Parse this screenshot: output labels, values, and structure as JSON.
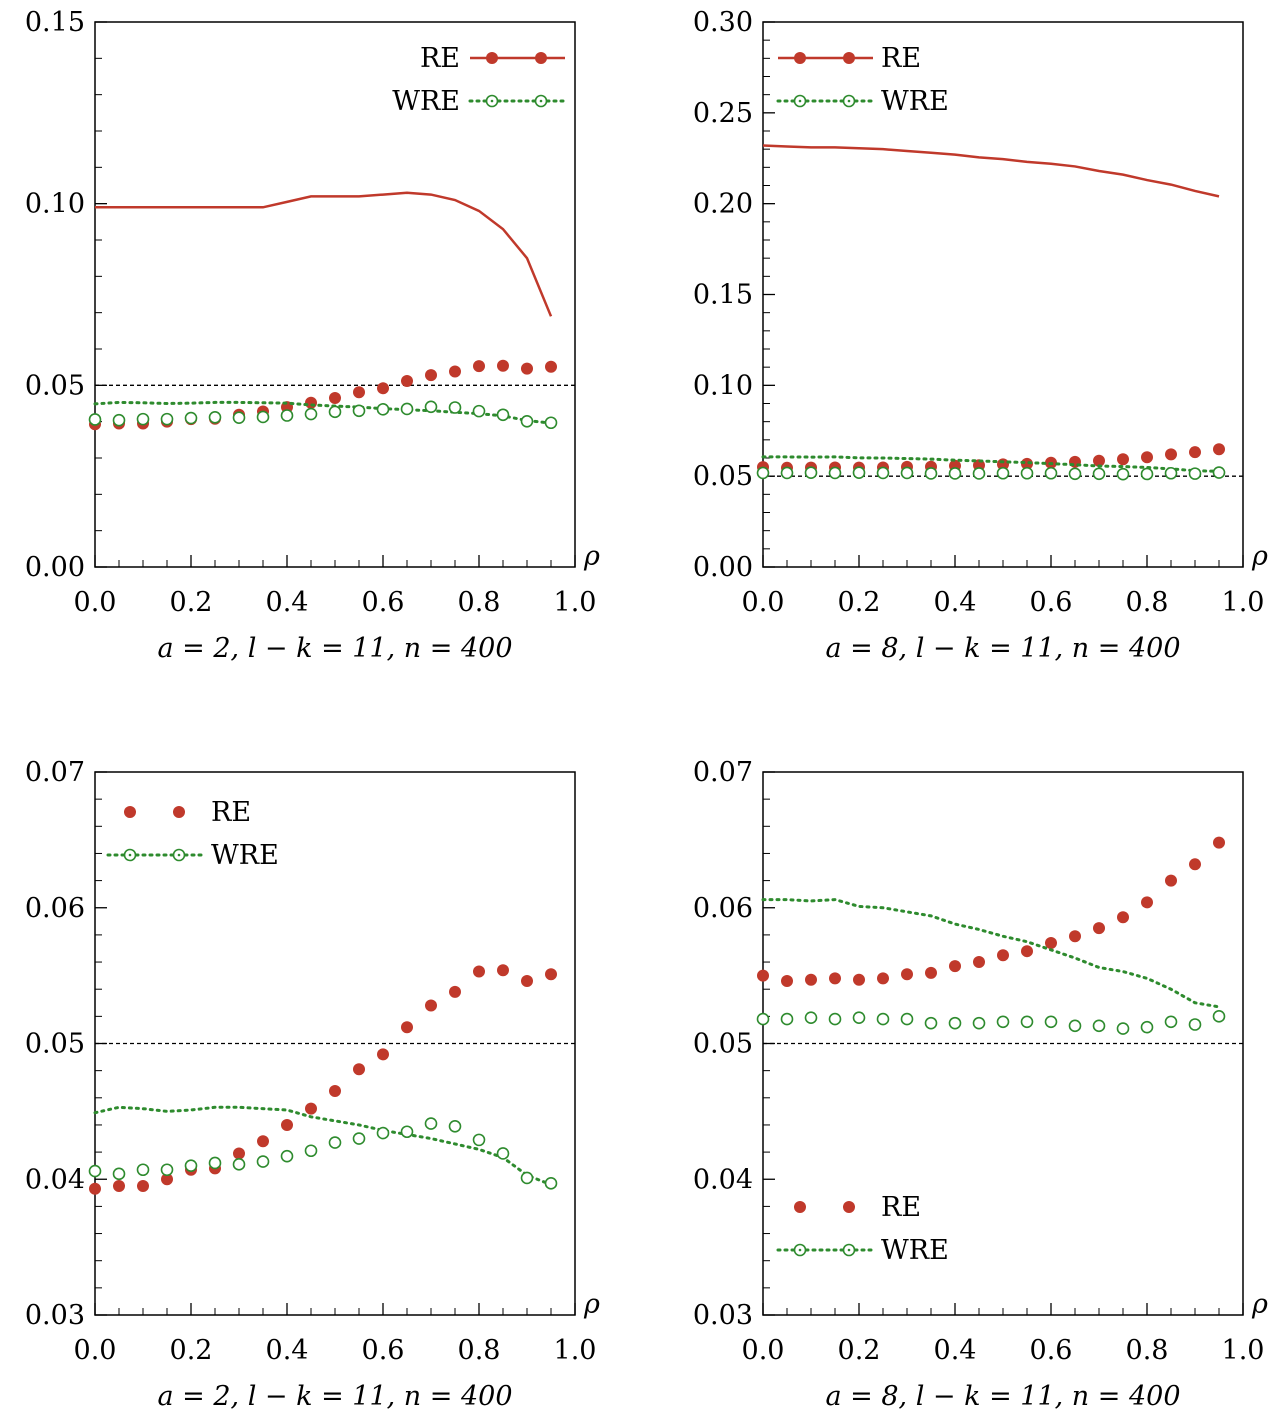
{
  "colors": {
    "re": "#c0392b",
    "wre": "#2e8b2e",
    "ref": "#000000"
  },
  "chart_data": [
    {
      "type": "line",
      "caption": {
        "prefix": "a = 2, l − k = 11, n = 400"
      },
      "xlabel": "ρ",
      "xlim": [
        0.0,
        1.0
      ],
      "ylim": [
        0.0,
        0.15
      ],
      "x_ticks": [
        "0.0",
        "0.2",
        "0.4",
        "0.6",
        "0.8",
        "1.0"
      ],
      "y_ticks": [
        "0.00",
        "0.05",
        "0.10",
        "0.15"
      ],
      "reference_line": 0.05,
      "legend": {
        "placement": "top-right",
        "entries": [
          "RE",
          "WRE"
        ]
      },
      "x": [
        0.0,
        0.05,
        0.1,
        0.15,
        0.2,
        0.25,
        0.3,
        0.35,
        0.4,
        0.45,
        0.5,
        0.55,
        0.6,
        0.65,
        0.7,
        0.75,
        0.8,
        0.85,
        0.9,
        0.95
      ],
      "series": [
        {
          "name": "RE",
          "style": "solid-line",
          "values": [
            0.099,
            0.099,
            0.099,
            0.099,
            0.099,
            0.099,
            0.099,
            0.099,
            0.1005,
            0.102,
            0.102,
            0.102,
            0.1025,
            0.103,
            0.1025,
            0.101,
            0.098,
            0.093,
            0.085,
            0.069
          ]
        },
        {
          "name": "RE",
          "style": "filled-points",
          "values": [
            0.0393,
            0.0395,
            0.0395,
            0.04,
            0.0407,
            0.0408,
            0.0419,
            0.0428,
            0.044,
            0.0452,
            0.0465,
            0.0481,
            0.0492,
            0.0512,
            0.0528,
            0.0538,
            0.0553,
            0.0554,
            0.0546,
            0.0551
          ]
        },
        {
          "name": "WRE",
          "style": "dotted-line",
          "values": [
            0.0449,
            0.0453,
            0.0452,
            0.045,
            0.0451,
            0.0453,
            0.0453,
            0.0452,
            0.0451,
            0.0446,
            0.0443,
            0.044,
            0.0436,
            0.0433,
            0.043,
            0.0426,
            0.0422,
            0.0416,
            0.0403,
            0.0396
          ]
        },
        {
          "name": "WRE",
          "style": "hollow-points",
          "values": [
            0.0406,
            0.0404,
            0.0407,
            0.0407,
            0.041,
            0.0412,
            0.0411,
            0.0413,
            0.0417,
            0.0421,
            0.0427,
            0.043,
            0.0434,
            0.0435,
            0.0441,
            0.0439,
            0.0429,
            0.0419,
            0.0401,
            0.0397
          ]
        }
      ]
    },
    {
      "type": "line",
      "caption": {
        "prefix": "a = 8, l − k = 11, n = 400"
      },
      "xlabel": "ρ",
      "xlim": [
        0.0,
        1.0
      ],
      "ylim": [
        0.0,
        0.3
      ],
      "x_ticks": [
        "0.0",
        "0.2",
        "0.4",
        "0.6",
        "0.8",
        "1.0"
      ],
      "y_ticks": [
        "0.00",
        "0.05",
        "0.10",
        "0.15",
        "0.20",
        "0.25",
        "0.30"
      ],
      "reference_line": 0.05,
      "legend": {
        "placement": "top-left",
        "entries": [
          "RE",
          "WRE"
        ]
      },
      "x": [
        0.0,
        0.05,
        0.1,
        0.15,
        0.2,
        0.25,
        0.3,
        0.35,
        0.4,
        0.45,
        0.5,
        0.55,
        0.6,
        0.65,
        0.7,
        0.75,
        0.8,
        0.85,
        0.9,
        0.95
      ],
      "series": [
        {
          "name": "RE",
          "style": "solid-line",
          "values": [
            0.232,
            0.2315,
            0.231,
            0.231,
            0.2305,
            0.23,
            0.229,
            0.228,
            0.227,
            0.2255,
            0.2245,
            0.223,
            0.222,
            0.2205,
            0.218,
            0.216,
            0.213,
            0.2105,
            0.207,
            0.204
          ]
        },
        {
          "name": "RE",
          "style": "filled-points",
          "values": [
            0.055,
            0.0546,
            0.0547,
            0.0548,
            0.0547,
            0.0548,
            0.0551,
            0.0552,
            0.0557,
            0.056,
            0.0565,
            0.0568,
            0.0574,
            0.0579,
            0.0585,
            0.0593,
            0.0604,
            0.062,
            0.0632,
            0.0648
          ]
        },
        {
          "name": "WRE",
          "style": "dotted-line",
          "values": [
            0.0606,
            0.0606,
            0.0605,
            0.0606,
            0.0601,
            0.06,
            0.0597,
            0.0594,
            0.0588,
            0.0584,
            0.0579,
            0.0575,
            0.0569,
            0.0563,
            0.0556,
            0.0553,
            0.0548,
            0.054,
            0.053,
            0.0527
          ]
        },
        {
          "name": "WRE",
          "style": "hollow-points",
          "values": [
            0.0518,
            0.0518,
            0.0519,
            0.0518,
            0.0519,
            0.0518,
            0.0518,
            0.0515,
            0.0515,
            0.0515,
            0.0516,
            0.0516,
            0.0516,
            0.0513,
            0.0513,
            0.0511,
            0.0512,
            0.0516,
            0.0514,
            0.052
          ]
        }
      ]
    },
    {
      "type": "line",
      "caption": {
        "prefix": "a = 2, l − k = 11, n = 400"
      },
      "xlabel": "ρ",
      "xlim": [
        0.0,
        1.0
      ],
      "ylim": [
        0.03,
        0.07
      ],
      "x_ticks": [
        "0.0",
        "0.2",
        "0.4",
        "0.6",
        "0.8",
        "1.0"
      ],
      "y_ticks": [
        "0.03",
        "0.04",
        "0.05",
        "0.06",
        "0.07"
      ],
      "reference_line": 0.05,
      "legend": {
        "placement": "top-left",
        "entries": [
          "RE",
          "WRE"
        ]
      },
      "x": [
        0.0,
        0.05,
        0.1,
        0.15,
        0.2,
        0.25,
        0.3,
        0.35,
        0.4,
        0.45,
        0.5,
        0.55,
        0.6,
        0.65,
        0.7,
        0.75,
        0.8,
        0.85,
        0.9,
        0.95
      ],
      "series": [
        {
          "name": "RE",
          "style": "filled-points",
          "values": [
            0.0393,
            0.0395,
            0.0395,
            0.04,
            0.0407,
            0.0408,
            0.0419,
            0.0428,
            0.044,
            0.0452,
            0.0465,
            0.0481,
            0.0492,
            0.0512,
            0.0528,
            0.0538,
            0.0553,
            0.0554,
            0.0546,
            0.0551
          ]
        },
        {
          "name": "WRE",
          "style": "dotted-line",
          "values": [
            0.0449,
            0.0453,
            0.0452,
            0.045,
            0.0451,
            0.0453,
            0.0453,
            0.0452,
            0.0451,
            0.0446,
            0.0443,
            0.044,
            0.0436,
            0.0433,
            0.043,
            0.0426,
            0.0422,
            0.0416,
            0.0403,
            0.0396
          ]
        },
        {
          "name": "WRE",
          "style": "hollow-points",
          "values": [
            0.0406,
            0.0404,
            0.0407,
            0.0407,
            0.041,
            0.0412,
            0.0411,
            0.0413,
            0.0417,
            0.0421,
            0.0427,
            0.043,
            0.0434,
            0.0435,
            0.0441,
            0.0439,
            0.0429,
            0.0419,
            0.0401,
            0.0397
          ]
        }
      ]
    },
    {
      "type": "line",
      "caption": {
        "prefix": "a = 8, l − k = 11, n = 400"
      },
      "xlabel": "ρ",
      "xlim": [
        0.0,
        1.0
      ],
      "ylim": [
        0.03,
        0.07
      ],
      "x_ticks": [
        "0.0",
        "0.2",
        "0.4",
        "0.6",
        "0.8",
        "1.0"
      ],
      "y_ticks": [
        "0.03",
        "0.04",
        "0.05",
        "0.06",
        "0.07"
      ],
      "reference_line": 0.05,
      "legend": {
        "placement": "bottom-left",
        "entries": [
          "RE",
          "WRE"
        ]
      },
      "x": [
        0.0,
        0.05,
        0.1,
        0.15,
        0.2,
        0.25,
        0.3,
        0.35,
        0.4,
        0.45,
        0.5,
        0.55,
        0.6,
        0.65,
        0.7,
        0.75,
        0.8,
        0.85,
        0.9,
        0.95
      ],
      "series": [
        {
          "name": "RE",
          "style": "filled-points",
          "values": [
            0.055,
            0.0546,
            0.0547,
            0.0548,
            0.0547,
            0.0548,
            0.0551,
            0.0552,
            0.0557,
            0.056,
            0.0565,
            0.0568,
            0.0574,
            0.0579,
            0.0585,
            0.0593,
            0.0604,
            0.062,
            0.0632,
            0.0648
          ]
        },
        {
          "name": "WRE",
          "style": "dotted-line",
          "values": [
            0.0606,
            0.0606,
            0.0605,
            0.0606,
            0.0601,
            0.06,
            0.0597,
            0.0594,
            0.0588,
            0.0584,
            0.0579,
            0.0575,
            0.0569,
            0.0563,
            0.0556,
            0.0553,
            0.0548,
            0.054,
            0.053,
            0.0527
          ]
        },
        {
          "name": "WRE",
          "style": "hollow-points",
          "values": [
            0.0518,
            0.0518,
            0.0519,
            0.0518,
            0.0519,
            0.0518,
            0.0518,
            0.0515,
            0.0515,
            0.0515,
            0.0516,
            0.0516,
            0.0516,
            0.0513,
            0.0513,
            0.0511,
            0.0512,
            0.0516,
            0.0514,
            0.052
          ]
        }
      ]
    }
  ]
}
